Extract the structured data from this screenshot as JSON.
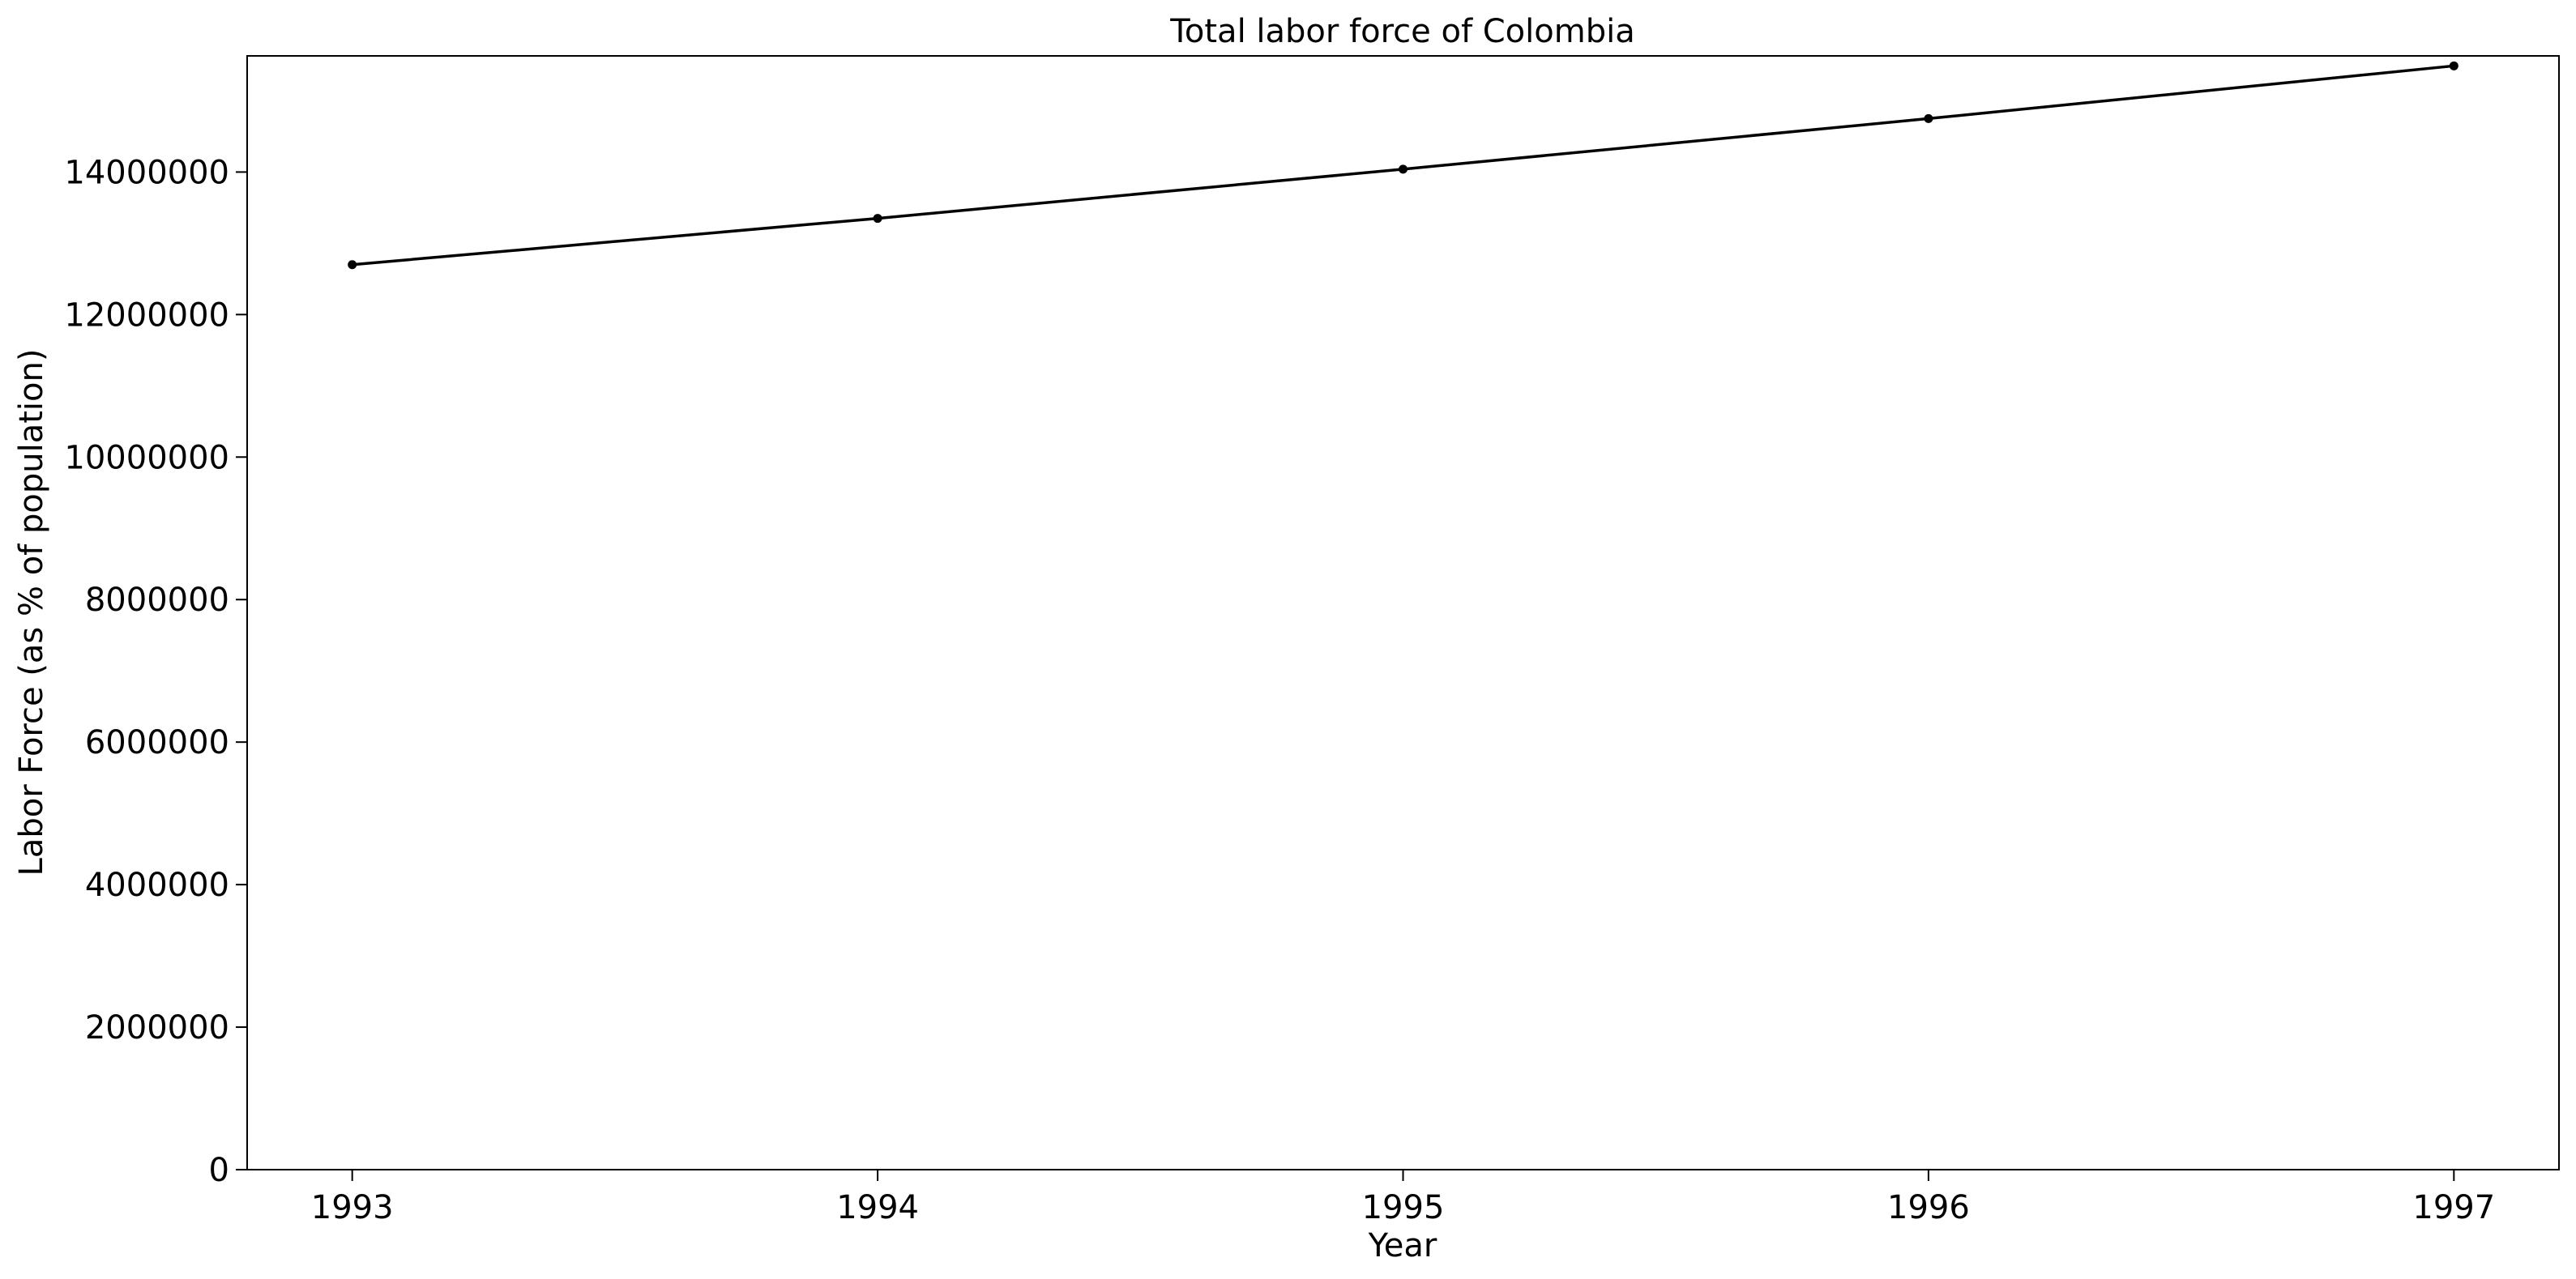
{
  "chart_data": {
    "type": "line",
    "title": "Total labor force of Colombia",
    "xlabel": "Year",
    "ylabel": "Labor Force (as % of population)",
    "x": [
      1993,
      1994,
      1995,
      1996,
      1997
    ],
    "series": [
      {
        "values": [
          12700000,
          13350000,
          14040000,
          14750000,
          15490000
        ],
        "color": "#000000",
        "marker": "circle"
      }
    ],
    "xticks": [
      "1993",
      "1994",
      "1995",
      "1996",
      "1997"
    ],
    "yticks": [
      0,
      2000000,
      4000000,
      6000000,
      8000000,
      10000000,
      12000000,
      14000000
    ],
    "ytick_labels": [
      "0",
      "2000000",
      "4000000",
      "6000000",
      "8000000",
      "10000000",
      "12000000",
      "14000000"
    ],
    "xlim": [
      1992.8,
      1997.2
    ],
    "ylim": [
      0,
      15630000
    ],
    "grid": false,
    "legend": "none"
  }
}
